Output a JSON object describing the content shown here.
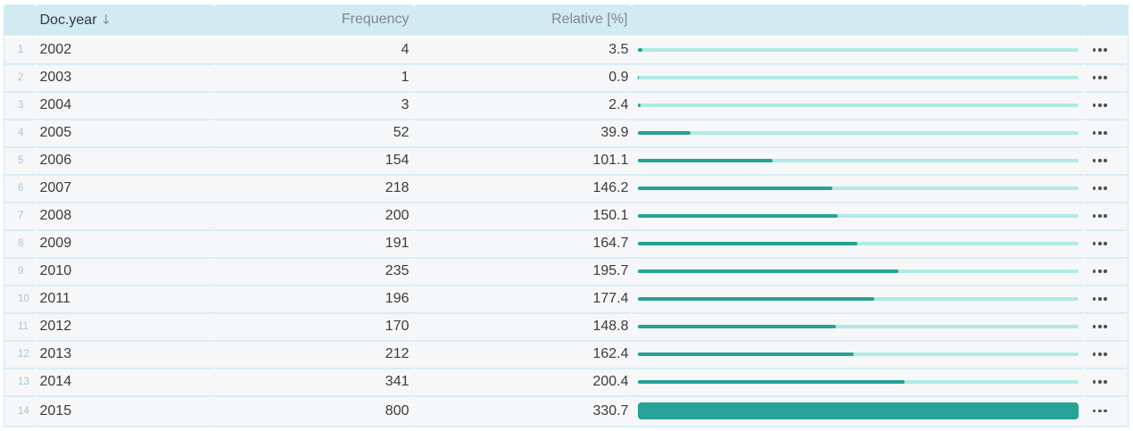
{
  "table": {
    "columns": [
      {
        "key": "index",
        "label": ""
      },
      {
        "key": "year",
        "label": "Doc.year",
        "sorted": "descending",
        "sort_indicator": "↓"
      },
      {
        "key": "frequency",
        "label": "Frequency"
      },
      {
        "key": "relative",
        "label": "Relative [%]"
      },
      {
        "key": "bar",
        "label": ""
      },
      {
        "key": "menu",
        "label": ""
      }
    ],
    "bar_scale_max": 330.7,
    "row_menu_icon": "ellipsis",
    "rows": [
      {
        "index": 1,
        "year": "2002",
        "frequency": "4",
        "relative": "3.5"
      },
      {
        "index": 2,
        "year": "2003",
        "frequency": "1",
        "relative": "0.9"
      },
      {
        "index": 3,
        "year": "2004",
        "frequency": "3",
        "relative": "2.4"
      },
      {
        "index": 4,
        "year": "2005",
        "frequency": "52",
        "relative": "39.9"
      },
      {
        "index": 5,
        "year": "2006",
        "frequency": "154",
        "relative": "101.1"
      },
      {
        "index": 6,
        "year": "2007",
        "frequency": "218",
        "relative": "146.2"
      },
      {
        "index": 7,
        "year": "2008",
        "frequency": "200",
        "relative": "150.1"
      },
      {
        "index": 8,
        "year": "2009",
        "frequency": "191",
        "relative": "164.7"
      },
      {
        "index": 9,
        "year": "2010",
        "frequency": "235",
        "relative": "195.7"
      },
      {
        "index": 10,
        "year": "2011",
        "frequency": "196",
        "relative": "177.4"
      },
      {
        "index": 11,
        "year": "2012",
        "frequency": "170",
        "relative": "148.8"
      },
      {
        "index": 12,
        "year": "2013",
        "frequency": "212",
        "relative": "162.4"
      },
      {
        "index": 13,
        "year": "2014",
        "frequency": "341",
        "relative": "200.4"
      },
      {
        "index": 14,
        "year": "2015",
        "frequency": "800",
        "relative": "330.7",
        "highlight": true
      }
    ]
  },
  "colors": {
    "header_background": "#d2eaf2",
    "row_background": "#f6f7f8",
    "row_separator": "#d9edf7",
    "bar_fill": "#26a296",
    "bar_track": "#aeebe3",
    "text_primary": "#3b3b3b",
    "text_header_muted": "#82888d",
    "row_number": "#a8c6d8",
    "menu_dots": "#4e5054"
  }
}
